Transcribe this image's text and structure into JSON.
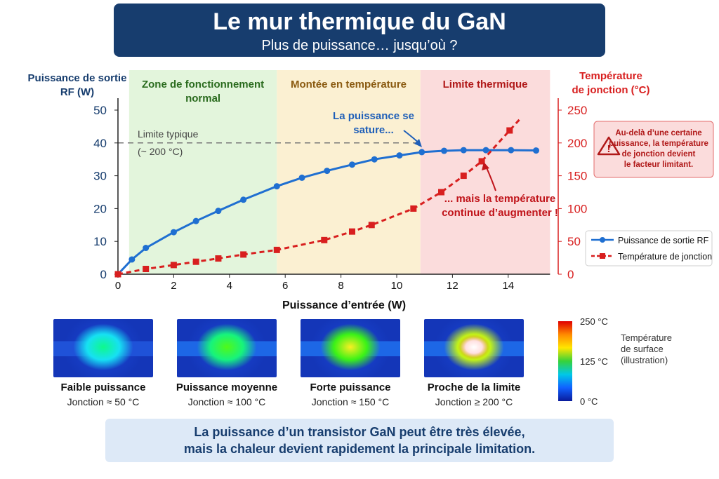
{
  "header": {
    "title": "Le mur thermique du GaN",
    "subtitle": "Plus de puissance… jusqu’où ?"
  },
  "chart_data": {
    "type": "line",
    "xlabel": "Puissance d’entrée (W)",
    "ylabel_left": [
      "Puissance de sortie",
      "RF (W)"
    ],
    "ylabel_right": [
      "Température",
      "de jonction (°C)"
    ],
    "xlim": [
      0,
      15.5
    ],
    "ylim_left": [
      0,
      50
    ],
    "ylim_right": [
      0,
      250
    ],
    "x_ticks": [
      "0",
      "2",
      "4",
      "6",
      "8",
      "10",
      "12",
      "14"
    ],
    "y_ticks_left": [
      "0",
      "10",
      "20",
      "30",
      "40",
      "50"
    ],
    "y_ticks_right": [
      "0",
      "50",
      "100",
      "150",
      "200",
      "250"
    ],
    "grid": false,
    "legend_position": "right",
    "zones": [
      {
        "label": [
          "Zone de fonctionnement",
          "normal"
        ],
        "x_from": 0.4,
        "x_to": 5.7,
        "color": "#e3f5dc",
        "text_color": "#2a6b1e"
      },
      {
        "label": [
          "Montée en température"
        ],
        "x_from": 5.7,
        "x_to": 10.85,
        "color": "#fbf0d2",
        "text_color": "#8a5a10"
      },
      {
        "label": [
          "Limite thermique"
        ],
        "x_from": 10.85,
        "x_to": 15.5,
        "color": "#fbdcdc",
        "text_color": "#b01818"
      }
    ],
    "series": [
      {
        "name": "Puissance de sortie RF",
        "axis": "left",
        "color": "#1f6fd1",
        "marker": "circle",
        "x": [
          0,
          0.5,
          1,
          2,
          2.8,
          3.6,
          4.5,
          5.7,
          6.6,
          7.5,
          8.4,
          9.2,
          10.1,
          10.9,
          11.7,
          12.4,
          13.2,
          14.1,
          15
        ],
        "y": [
          0,
          4.5,
          8,
          12.8,
          16.2,
          19.3,
          22.7,
          26.8,
          29.4,
          31.5,
          33.4,
          35,
          36.2,
          37.2,
          37.6,
          37.8,
          37.8,
          37.8,
          37.7
        ]
      },
      {
        "name": "Température de jonction",
        "axis": "right",
        "color": "#d81f1f",
        "marker": "square",
        "x": [
          0,
          1,
          2,
          2.8,
          3.6,
          4.5,
          5.7,
          7.4,
          8.4,
          9.1,
          10.6,
          11.6,
          12.4,
          13.05,
          14.05
        ],
        "y": [
          0,
          8,
          14,
          19,
          24,
          30,
          37,
          52,
          65,
          75,
          100,
          125,
          150,
          172,
          219
        ]
      }
    ],
    "reference_line": {
      "y": 40,
      "label": [
        "Limite typique",
        "(~ 200 °C)"
      ]
    },
    "annotations": {
      "saturation": [
        "La puissance se",
        "sature..."
      ],
      "temperature": [
        "... mais la température",
        "continue d’augmenter !"
      ],
      "warning": [
        "Au-delà d’une certaine",
        "puissance, la température",
        "de jonction devient",
        "le facteur limitant."
      ]
    }
  },
  "thermal_images": [
    {
      "label": "Faible puissance",
      "sub": "Jonction ≈ 50 °C",
      "level": 0.2
    },
    {
      "label": "Puissance moyenne",
      "sub": "Jonction ≈ 100 °C",
      "level": 0.45
    },
    {
      "label": "Forte puissance",
      "sub": "Jonction ≈ 150 °C",
      "level": 0.7
    },
    {
      "label": "Proche de la limite",
      "sub": "Jonction ≥ 200 °C",
      "level": 0.95
    }
  ],
  "scale": {
    "max": "250 °C",
    "mid": "125 °C",
    "min": "0 °C",
    "title": [
      "Température",
      "de surface",
      "(illustration)"
    ]
  },
  "footer": [
    "La puissance d’un transistor GaN peut être très élevée,",
    "mais la chaleur devient rapidement la principale limitation."
  ]
}
